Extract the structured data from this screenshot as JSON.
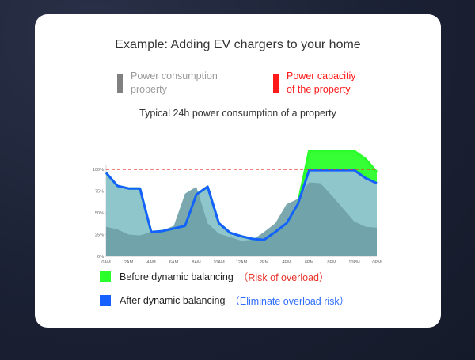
{
  "page": {
    "title": "Example: Adding EV chargers to your home",
    "subtitle": "Typical 24h power consumption of a property"
  },
  "legend_top": [
    {
      "label": "Power consumption\nproperty",
      "color": "#808080",
      "text_color": "#9a9a9a"
    },
    {
      "label": "Power capacitiy\nof the property",
      "color": "#ff1a1a",
      "text_color": "#ff1a1a"
    }
  ],
  "legend_bottom": [
    {
      "label": "Before dynamic balancing",
      "note": "（Risk of overload）",
      "swatch": "#2bff2b",
      "note_color": "#e8352b"
    },
    {
      "label": "After dynamic balancing",
      "note": "（Eliminate overload risk）",
      "swatch": "#1560ff",
      "note_color": "#2f6dff"
    }
  ],
  "chart_data": {
    "type": "area",
    "x": [
      0,
      1,
      2,
      3,
      4,
      5,
      6,
      7,
      8,
      9,
      10,
      11,
      12,
      13,
      14,
      15,
      16,
      17,
      18,
      19,
      20,
      21,
      22,
      23,
      24
    ],
    "xticks": [
      "0AM",
      "2AM",
      "4AM",
      "6AM",
      "8AM",
      "10AM",
      "12AM",
      "2PM",
      "4PM",
      "6PM",
      "8PM",
      "10PM",
      "0PM"
    ],
    "xtick_positions": [
      0,
      2,
      4,
      6,
      8,
      10,
      12,
      14,
      16,
      18,
      20,
      22,
      24
    ],
    "yticks": [
      "0%",
      "25%",
      "50%",
      "75%",
      "100%"
    ],
    "ytick_values": [
      0,
      25,
      50,
      75,
      100
    ],
    "ylim": [
      0,
      120
    ],
    "capacity": 100,
    "series": [
      {
        "name": "Power consumption property",
        "color": "#6d9ea6",
        "values": [
          34,
          31,
          25,
          24,
          28,
          30,
          35,
          72,
          80,
          38,
          26,
          22,
          18,
          19,
          28,
          38,
          60,
          66,
          85,
          84,
          70,
          55,
          40,
          34,
          33
        ]
      },
      {
        "name": "Before dynamic balancing",
        "color": "#2bff2b",
        "values": [
          96,
          81,
          78,
          78,
          28,
          29,
          32,
          35,
          71,
          80,
          38,
          27,
          23,
          20,
          19,
          28,
          38,
          60,
          121,
          121,
          121,
          121,
          121,
          112,
          97
        ]
      },
      {
        "name": "After dynamic balancing",
        "color": "#1560ff",
        "values": [
          96,
          81,
          78,
          78,
          28,
          29,
          32,
          35,
          71,
          80,
          38,
          27,
          23,
          20,
          19,
          28,
          38,
          60,
          99,
          99,
          99,
          99,
          99,
          90,
          84
        ]
      }
    ]
  }
}
